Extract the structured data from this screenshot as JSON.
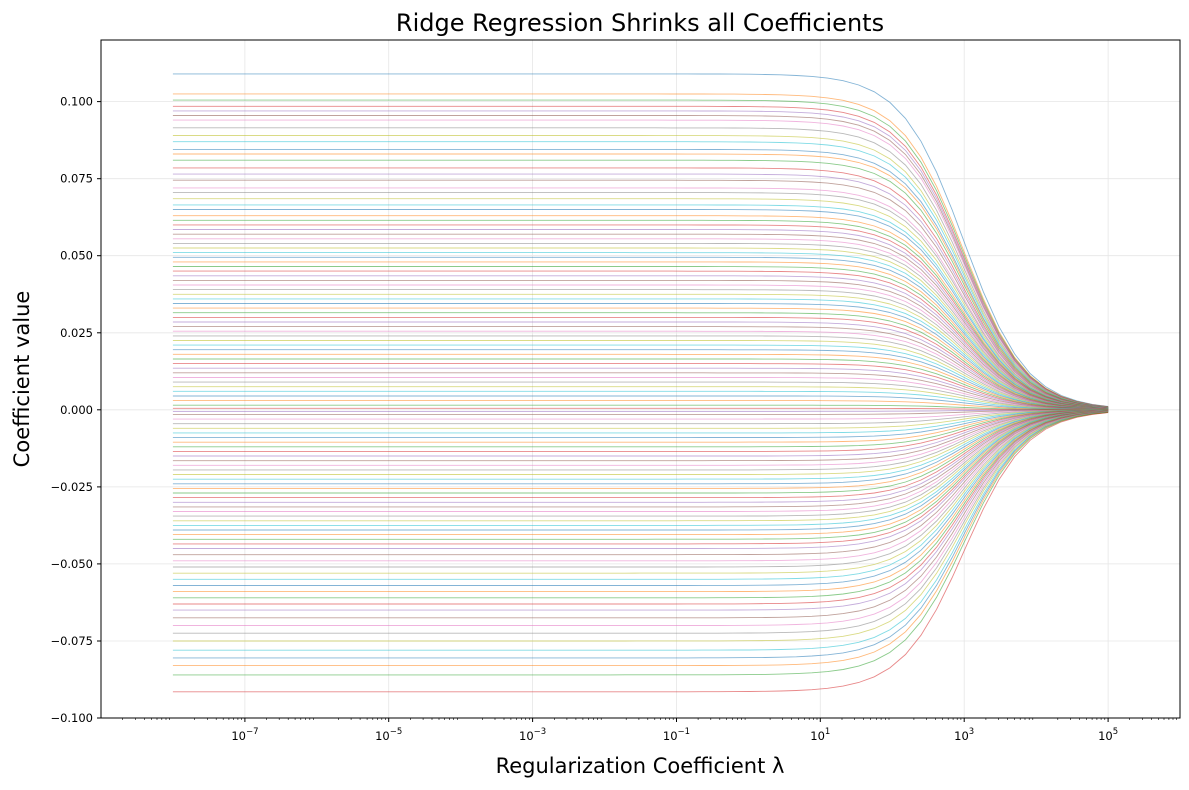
{
  "chart_data": {
    "type": "line",
    "title": "Ridge Regression Shrinks all Coefficients",
    "xlabel": "Regularization Coefficient λ",
    "ylabel": "Coefficient value",
    "x_scale": "log",
    "xlim": [
      1e-09,
      1000000.0
    ],
    "ylim": [
      -0.1,
      0.12
    ],
    "x_ticks": [
      {
        "value": 1e-07,
        "base": "10",
        "exp": "−7"
      },
      {
        "value": 1e-05,
        "base": "10",
        "exp": "−5"
      },
      {
        "value": 0.001,
        "base": "10",
        "exp": "−3"
      },
      {
        "value": 0.1,
        "base": "10",
        "exp": "−1"
      },
      {
        "value": 10.0,
        "base": "10",
        "exp": "1"
      },
      {
        "value": 1000.0,
        "base": "10",
        "exp": "3"
      },
      {
        "value": 100000.0,
        "base": "10",
        "exp": "5"
      }
    ],
    "y_ticks": [
      {
        "value": 0.1,
        "label": "0.100"
      },
      {
        "value": 0.075,
        "label": "0.075"
      },
      {
        "value": 0.05,
        "label": "0.050"
      },
      {
        "value": 0.025,
        "label": "0.025"
      },
      {
        "value": 0.0,
        "label": "0.000"
      },
      {
        "value": -0.025,
        "label": "−0.025"
      },
      {
        "value": -0.05,
        "label": "−0.050"
      },
      {
        "value": -0.075,
        "label": "−0.075"
      },
      {
        "value": -0.1,
        "label": "−0.100"
      }
    ],
    "grid": true,
    "legend": "none",
    "lambda_range": [
      1e-08,
      100000.0
    ],
    "shrinkage_half_point": 1000,
    "series_start_values": [
      0.109,
      0.1025,
      0.1005,
      0.0985,
      0.097,
      0.0955,
      0.094,
      0.0915,
      0.089,
      0.087,
      0.0845,
      0.083,
      0.081,
      0.0785,
      0.0765,
      0.0745,
      0.072,
      0.0705,
      0.0685,
      0.0665,
      0.065,
      0.063,
      0.0615,
      0.06,
      0.0585,
      0.057,
      0.0555,
      0.054,
      0.0525,
      0.051,
      0.0495,
      0.048,
      0.0465,
      0.045,
      0.0435,
      0.042,
      0.0405,
      0.039,
      0.0375,
      0.036,
      0.0345,
      0.033,
      0.0315,
      0.03,
      0.0285,
      0.027,
      0.0255,
      0.024,
      0.0225,
      0.021,
      0.0195,
      0.018,
      0.0165,
      0.015,
      0.0135,
      0.012,
      0.0105,
      0.009,
      0.0075,
      0.006,
      0.0045,
      0.003,
      0.0015,
      0.0005,
      -0.0005,
      -0.0015,
      -0.003,
      -0.0045,
      -0.006,
      -0.0075,
      -0.009,
      -0.0105,
      -0.012,
      -0.0135,
      -0.015,
      -0.0165,
      -0.018,
      -0.0195,
      -0.021,
      -0.0225,
      -0.024,
      -0.0255,
      -0.027,
      -0.0285,
      -0.03,
      -0.0315,
      -0.033,
      -0.0345,
      -0.036,
      -0.0375,
      -0.039,
      -0.0405,
      -0.042,
      -0.0435,
      -0.045,
      -0.047,
      -0.049,
      -0.051,
      -0.053,
      -0.055,
      -0.057,
      -0.059,
      -0.061,
      -0.063,
      -0.065,
      -0.0675,
      -0.07,
      -0.0725,
      -0.075,
      -0.078,
      -0.0805,
      -0.083,
      -0.086,
      -0.0915
    ],
    "series_colors": [
      "#1f77b4",
      "#ff7f0e",
      "#2ca02c",
      "#d62728",
      "#9467bd",
      "#8c564b",
      "#e377c2",
      "#7f7f7f",
      "#bcbd22",
      "#17becf"
    ]
  }
}
